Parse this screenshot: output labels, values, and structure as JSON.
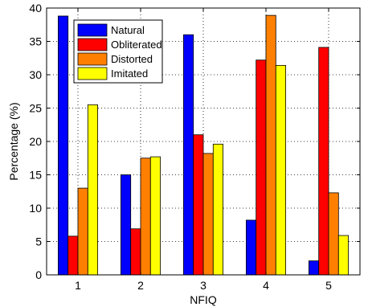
{
  "chart_data": {
    "type": "bar",
    "title": "",
    "xlabel": "NFIQ",
    "ylabel": "Percentage (%)",
    "categories": [
      "1",
      "2",
      "3",
      "4",
      "5"
    ],
    "ylim": [
      0,
      40
    ],
    "yticks": [
      "0",
      "5",
      "10",
      "15",
      "20",
      "25",
      "30",
      "35",
      "40"
    ],
    "grid": true,
    "legend_position": "top-left",
    "series": [
      {
        "name": "Natural",
        "color": "#0000ff",
        "values": [
          38.8,
          15.0,
          36.0,
          8.2,
          2.1
        ]
      },
      {
        "name": "Obliterated",
        "color": "#ff0000",
        "values": [
          5.8,
          6.9,
          21.0,
          32.2,
          34.1
        ]
      },
      {
        "name": "Distorted",
        "color": "#ff8000",
        "values": [
          13.0,
          17.5,
          18.2,
          38.9,
          12.3
        ]
      },
      {
        "name": "Imitated",
        "color": "#ffff00",
        "values": [
          25.5,
          17.7,
          19.6,
          31.4,
          5.9
        ]
      }
    ]
  }
}
